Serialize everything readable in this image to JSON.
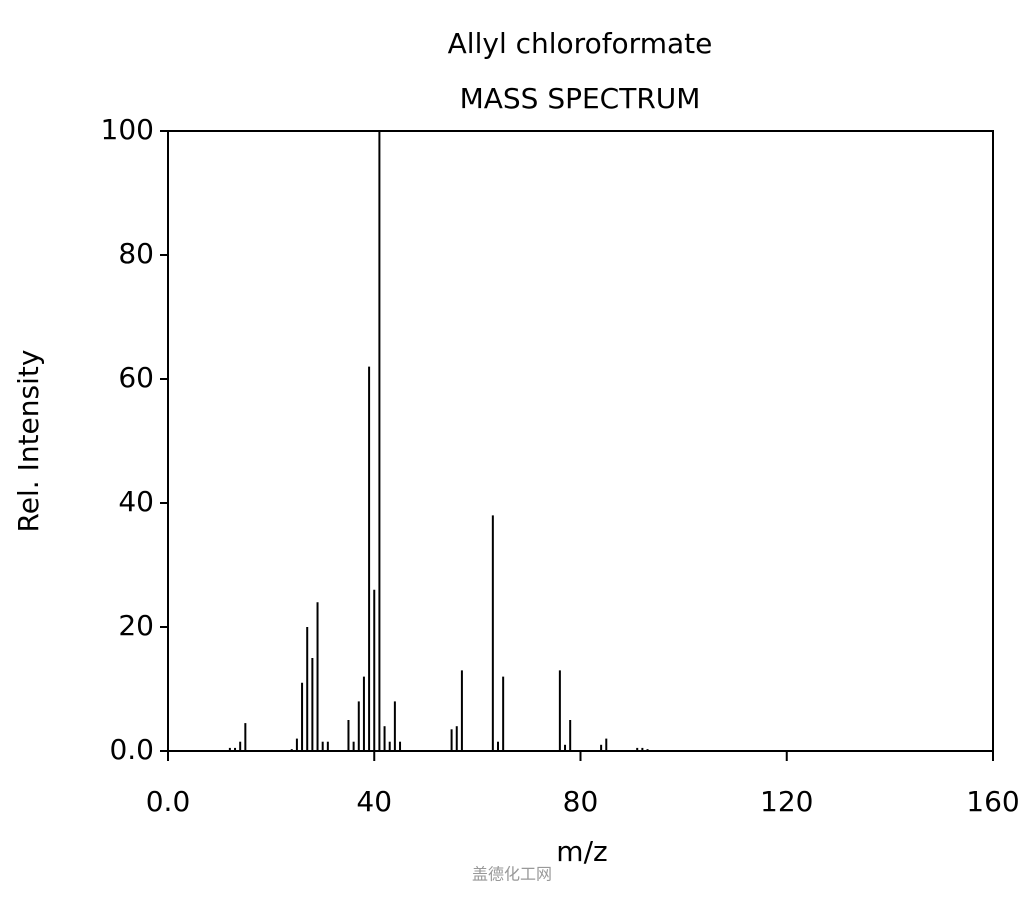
{
  "chart_data": {
    "type": "stem",
    "title": "Allyl chloroformate",
    "subtitle": "MASS SPECTRUM",
    "x_label": "m/z",
    "y_label": "Rel. Intensity",
    "watermark": "盖德化工网",
    "color": "#000000",
    "x": [
      12,
      13,
      14,
      15,
      24,
      25,
      26,
      27,
      28,
      29,
      30,
      31,
      35,
      36,
      37,
      38,
      39,
      40,
      41,
      42,
      43,
      44,
      45,
      55,
      56,
      57,
      63,
      64,
      65,
      76,
      77,
      78,
      84,
      85,
      91,
      92,
      93
    ],
    "values": [
      0.5,
      0.5,
      1.5,
      4.5,
      0.3,
      2,
      11,
      20,
      15,
      24,
      1.5,
      1.5,
      5,
      1.5,
      8,
      12,
      62,
      26,
      100,
      4,
      1.5,
      8,
      1.5,
      3.5,
      4,
      13,
      38,
      1.5,
      12,
      13,
      1,
      5,
      1,
      2,
      0.5,
      0.5,
      0.3
    ],
    "xlim": [
      0,
      160
    ],
    "ylim": [
      0,
      100
    ],
    "xticks": [
      {
        "value": 0,
        "label": "0.0"
      },
      40,
      80,
      120,
      160
    ],
    "yticks": [
      {
        "value": 0,
        "label": "0.0"
      },
      20,
      40,
      60,
      80,
      100
    ]
  }
}
